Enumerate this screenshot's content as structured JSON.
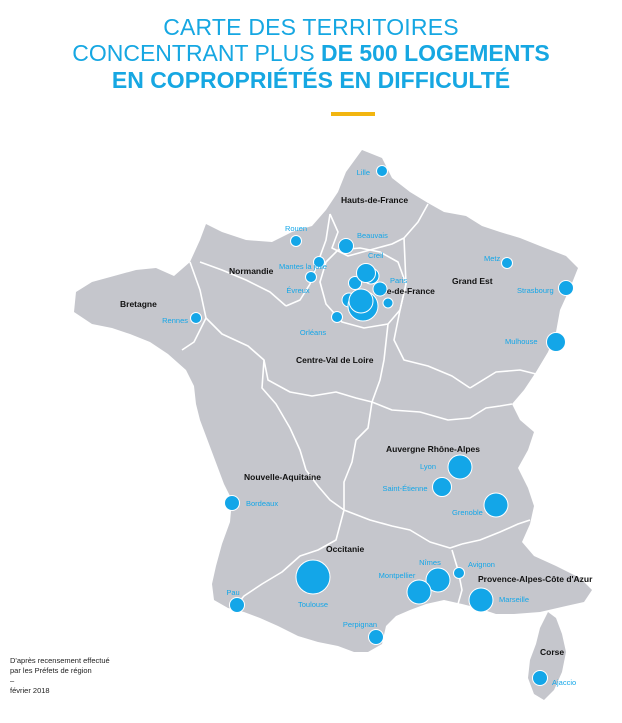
{
  "title": {
    "line1": "CARTE DES TERRITOIRES",
    "line2_a": "CONCENTRANT PLUS ",
    "line2_b": "DE 500 LOGEMENTS",
    "line3": "EN COPROPRIÉTÉS EN DIFFICULTÉ"
  },
  "colors": {
    "title": "#16a7e2",
    "rule": "#f2b50f",
    "land": "#c5c6cc",
    "border": "#ffffff",
    "bubble": "#13a6e8",
    "city_label": "#13a6e8",
    "region_label": "#111111"
  },
  "regions": [
    {
      "name": "Hauts-de-France"
    },
    {
      "name": "Normandie"
    },
    {
      "name": "Île-de-France"
    },
    {
      "name": "Grand Est"
    },
    {
      "name": "Bretagne"
    },
    {
      "name": "Centre-Val de Loire"
    },
    {
      "name": "Auvergne Rhône-Alpes"
    },
    {
      "name": "Nouvelle-Aquitaine"
    },
    {
      "name": "Occitanie"
    },
    {
      "name": "Provence-Alpes-Côte d'Azur"
    },
    {
      "name": "Corse"
    }
  ],
  "cities": [
    {
      "name": "Lille",
      "size": 1
    },
    {
      "name": "Beauvais",
      "size": 2
    },
    {
      "name": "Creil",
      "size": 3
    },
    {
      "name": "Rouen",
      "size": 1
    },
    {
      "name": "Mantes la jolie",
      "size": 1
    },
    {
      "name": "Évreux",
      "size": 1
    },
    {
      "name": "Paris",
      "size": 4
    },
    {
      "name": "Metz",
      "size": 1
    },
    {
      "name": "Strasbourg",
      "size": 2
    },
    {
      "name": "Rennes",
      "size": 1
    },
    {
      "name": "Orléans",
      "size": 1
    },
    {
      "name": "Mulhouse",
      "size": 3
    },
    {
      "name": "Lyon",
      "size": 4
    },
    {
      "name": "Saint-Étienne",
      "size": 3
    },
    {
      "name": "Grenoble",
      "size": 4
    },
    {
      "name": "Bordeaux",
      "size": 2
    },
    {
      "name": "Nîmes",
      "size": 4
    },
    {
      "name": "Avignon",
      "size": 1
    },
    {
      "name": "Montpellier",
      "size": 4
    },
    {
      "name": "Marseille",
      "size": 4
    },
    {
      "name": "Toulouse",
      "size": 5
    },
    {
      "name": "Pau",
      "size": 2
    },
    {
      "name": "Perpignan",
      "size": 2
    },
    {
      "name": "Ajaccio",
      "size": 2
    }
  ],
  "source_note": {
    "line1": "D'après recensement effectué",
    "line2": "par les Préfets de région",
    "line3": "–",
    "line4": "février 2018"
  }
}
